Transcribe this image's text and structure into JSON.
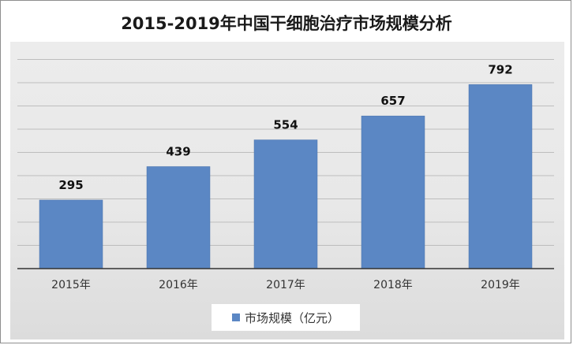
{
  "chart_data": {
    "type": "bar",
    "title": "2015-2019年中国干细胞治疗市场规模分析",
    "categories": [
      "2015年",
      "2016年",
      "2017年",
      "2018年",
      "2019年"
    ],
    "series": [
      {
        "name": "市场规模（亿元）",
        "values": [
          295,
          439,
          554,
          657,
          792
        ],
        "color": "#5b87c4"
      }
    ],
    "xlabel": "",
    "ylabel": "",
    "ylim": [
      0,
      1000
    ],
    "grid": true,
    "gridline_step": 100,
    "legend_position": "bottom"
  }
}
